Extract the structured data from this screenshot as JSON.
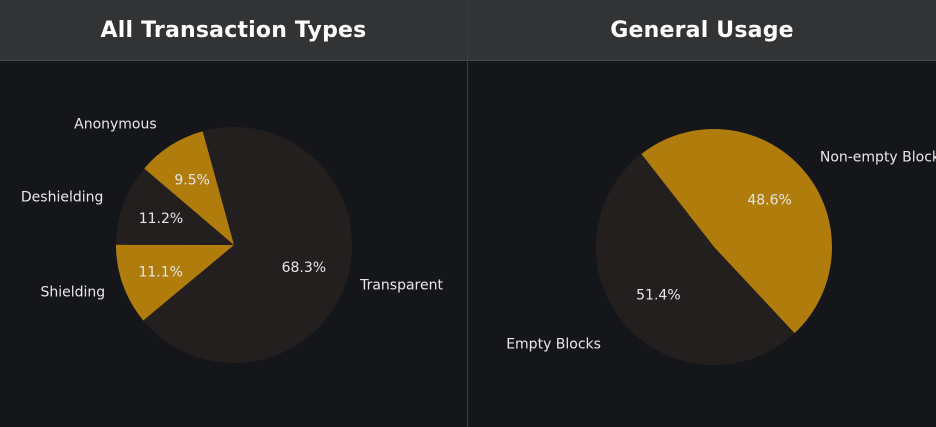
{
  "colors": {
    "gold": "#b07c0c",
    "dark": "#241f1f",
    "background": "#141619",
    "header": "#323335"
  },
  "chart_data": [
    {
      "type": "pie",
      "title": "All Transaction Types",
      "slices": [
        {
          "label": "Transparent",
          "value": 68.3,
          "display": "68.3%",
          "color": "#241f1f"
        },
        {
          "label": "Shielding",
          "value": 11.1,
          "display": "11.1%",
          "color": "#b07c0c"
        },
        {
          "label": "Deshielding",
          "value": 11.2,
          "display": "11.2%",
          "color": "#241f1f"
        },
        {
          "label": "Anonymous",
          "value": 9.5,
          "display": "9.5%",
          "color": "#b07c0c"
        }
      ]
    },
    {
      "type": "pie",
      "title": "General Usage",
      "slices": [
        {
          "label": "Non-empty Blocks",
          "value": 48.6,
          "display": "48.6%",
          "color": "#b07c0c"
        },
        {
          "label": "Empty Blocks",
          "value": 51.4,
          "display": "51.4%",
          "color": "#241f1f"
        }
      ]
    }
  ]
}
